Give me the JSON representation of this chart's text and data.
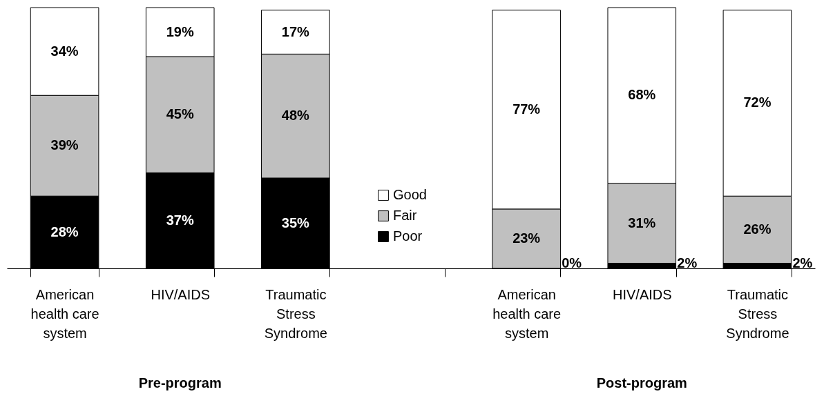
{
  "chart_data": {
    "type": "bar",
    "stacked": true,
    "legend": "bottom",
    "categories": [
      "American health care system",
      "HIV/AIDS",
      "Traumatic Stress Syndrome",
      null,
      "American health care system",
      "HIV/AIDS",
      "Traumatic Stress Syndrome"
    ],
    "series": [
      {
        "name": "Poor",
        "color": "#000000",
        "values": [
          28,
          37,
          35,
          null,
          0,
          2,
          2
        ],
        "value_labels": [
          "28%",
          "37%",
          "35%",
          null,
          "0%",
          "2%",
          "2%"
        ]
      },
      {
        "name": "Fair",
        "color": "#c0c0c0",
        "values": [
          39,
          45,
          48,
          null,
          23,
          31,
          26
        ],
        "value_labels": [
          "39%",
          "45%",
          "48%",
          null,
          "23%",
          "31%",
          "26%"
        ]
      },
      {
        "name": "Good",
        "color": "#ffffff",
        "values": [
          34,
          19,
          17,
          null,
          77,
          68,
          72
        ],
        "value_labels": [
          "34%",
          "19%",
          "17%",
          null,
          "77%",
          "68%",
          "72%"
        ]
      }
    ],
    "annotations": [
      "Pre-program",
      "Post-program"
    ]
  }
}
